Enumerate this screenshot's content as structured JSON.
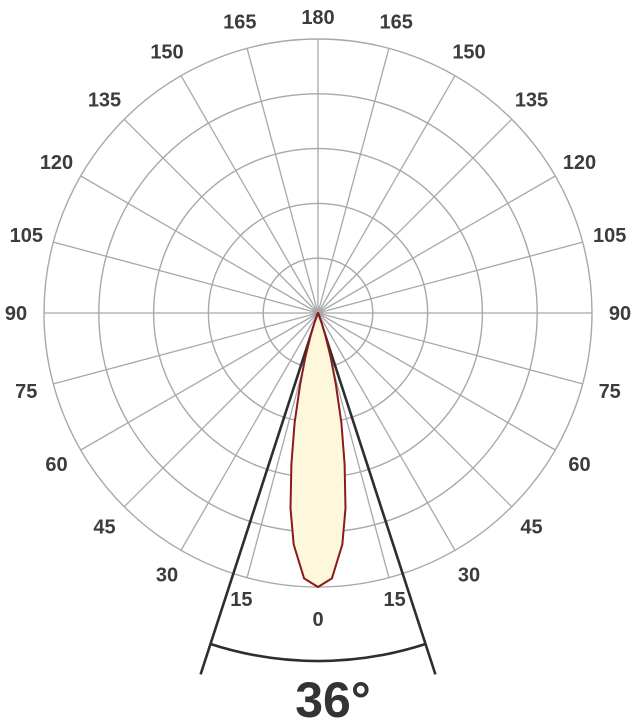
{
  "chart_data": {
    "type": "polar",
    "title": "",
    "angle_ticks": [
      {
        "angle": 180,
        "label": "180"
      },
      {
        "angle": 165,
        "label": "165"
      },
      {
        "angle": -165,
        "label": "165"
      },
      {
        "angle": 150,
        "label": "150"
      },
      {
        "angle": -150,
        "label": "150"
      },
      {
        "angle": 135,
        "label": "135"
      },
      {
        "angle": -135,
        "label": "135"
      },
      {
        "angle": 120,
        "label": "120"
      },
      {
        "angle": -120,
        "label": "120"
      },
      {
        "angle": 105,
        "label": "105"
      },
      {
        "angle": -105,
        "label": "105"
      },
      {
        "angle": 90,
        "label": "90"
      },
      {
        "angle": -90,
        "label": "90"
      },
      {
        "angle": 75,
        "label": "75"
      },
      {
        "angle": -75,
        "label": "75"
      },
      {
        "angle": 60,
        "label": "60"
      },
      {
        "angle": -60,
        "label": "60"
      },
      {
        "angle": 45,
        "label": "45"
      },
      {
        "angle": -45,
        "label": "45"
      },
      {
        "angle": 30,
        "label": "30"
      },
      {
        "angle": -30,
        "label": "30"
      },
      {
        "angle": 15,
        "label": "15"
      },
      {
        "angle": -15,
        "label": "15"
      },
      {
        "angle": 0,
        "label": "0"
      }
    ],
    "radial_rings": [
      0.2,
      0.4,
      0.6,
      0.8,
      1.0
    ],
    "spoke_step_deg": 15,
    "beam_angle_label": "36°",
    "beam_angle_deg": 36,
    "series": [
      {
        "color": "#8b1a1a",
        "fill": "#fdf8dc",
        "points": [
          {
            "angle": 0,
            "r": 1.0
          },
          {
            "angle": 3,
            "r": 0.97
          },
          {
            "angle": 6,
            "r": 0.85
          },
          {
            "angle": 8,
            "r": 0.72
          },
          {
            "angle": 10,
            "r": 0.56
          },
          {
            "angle": 12,
            "r": 0.41
          },
          {
            "angle": 14,
            "r": 0.27
          },
          {
            "angle": 16,
            "r": 0.17
          },
          {
            "angle": 18,
            "r": 0.09
          },
          {
            "angle": 20,
            "r": 0.04
          },
          {
            "angle": 22,
            "r": 0.0
          }
        ]
      }
    ],
    "grid": true
  },
  "colors": {
    "grid": "#a8a8a8",
    "beam_lines": "#2e2e2e",
    "curve": "#8b1a1a",
    "curve_fill": "#fdf8dc"
  }
}
